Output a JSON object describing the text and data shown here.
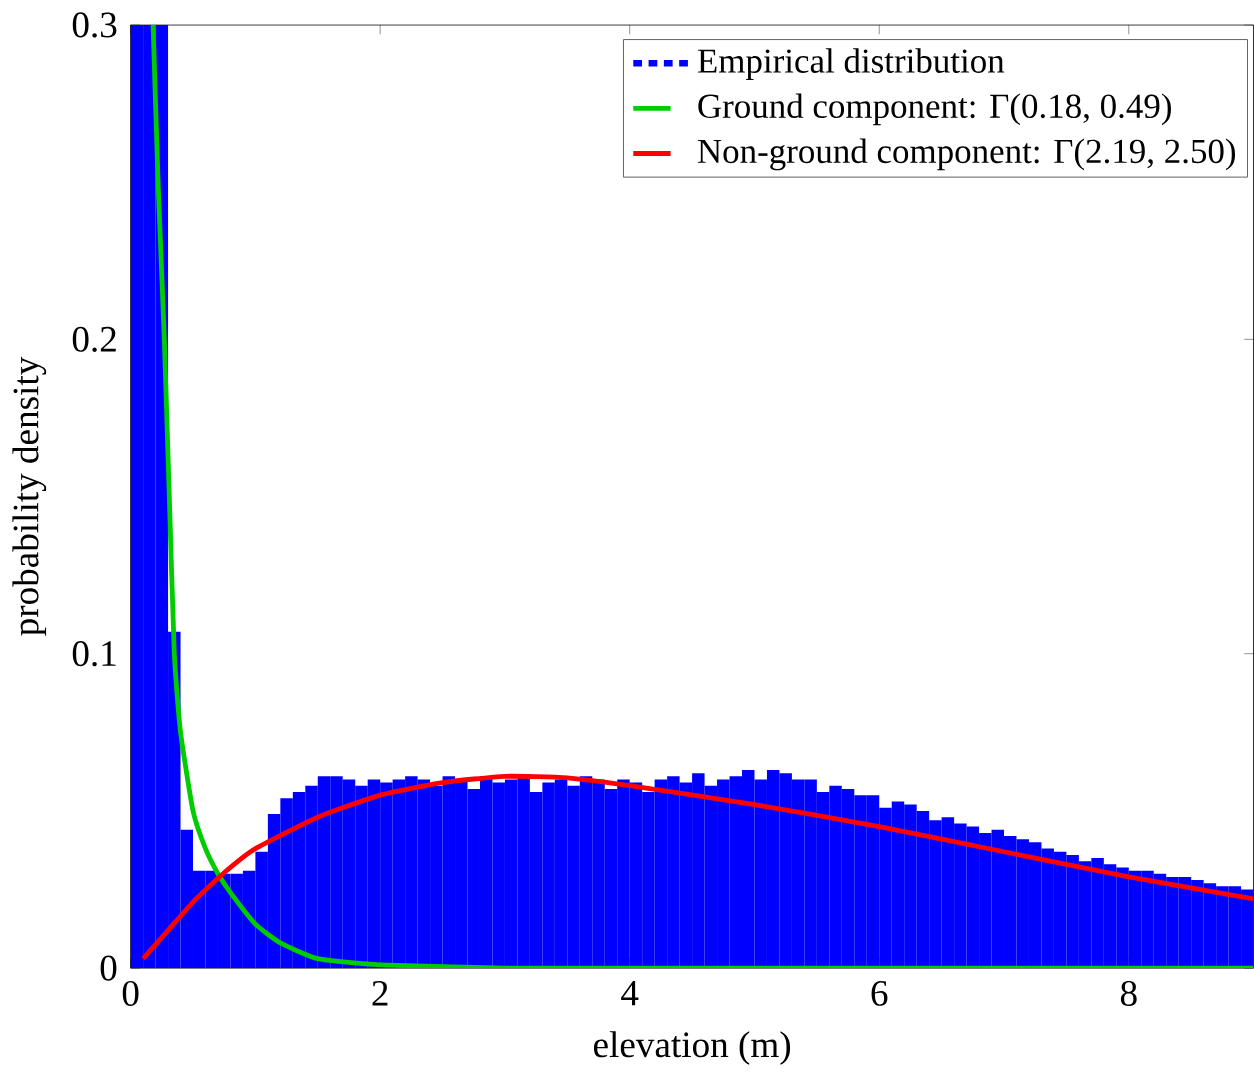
{
  "chart_data": {
    "type": "histogram",
    "xlabel": "elevation (m)",
    "ylabel": "probability density",
    "bins": [
      0,
      0.1,
      0.2,
      0.3,
      0.4,
      0.5,
      0.6,
      0.7,
      0.8,
      0.9,
      1.0,
      1.1,
      1.2,
      1.3,
      1.4,
      1.5,
      1.6,
      1.7,
      1.8,
      1.9,
      2.0,
      2.1,
      2.2,
      2.3,
      2.4,
      2.5,
      2.6,
      2.7,
      2.8,
      2.9,
      3.0,
      3.1,
      3.2,
      3.3,
      3.4,
      3.5,
      3.6,
      3.7,
      3.8,
      3.9,
      4.0,
      4.1,
      4.2,
      4.3,
      4.4,
      4.5,
      4.6,
      4.7,
      4.8,
      4.9,
      5.0,
      5.1,
      5.2,
      5.3,
      5.4,
      5.5,
      5.6,
      5.7,
      5.8,
      5.9,
      6.0,
      6.1,
      6.2,
      6.3,
      6.4,
      6.5,
      6.6,
      6.7,
      6.8,
      6.9,
      7.0,
      7.1,
      7.2,
      7.3,
      7.4,
      7.5,
      7.6,
      7.7,
      7.8,
      7.9,
      8.0,
      8.1,
      8.2,
      8.3,
      8.4,
      8.5,
      8.6,
      8.7,
      8.8,
      8.9,
      9.0
    ],
    "series": [
      {
        "name": "Empirical distribution",
        "color": "#0000ff",
        "values": [
          0.3,
          0.3,
          0.3,
          0.107,
          0.044,
          0.031,
          0.031,
          0.03,
          0.03,
          0.031,
          0.037,
          0.049,
          0.054,
          0.056,
          0.058,
          0.061,
          0.061,
          0.06,
          0.058,
          0.06,
          0.059,
          0.06,
          0.061,
          0.06,
          0.058,
          0.061,
          0.06,
          0.057,
          0.061,
          0.059,
          0.06,
          0.061,
          0.056,
          0.059,
          0.06,
          0.058,
          0.061,
          0.06,
          0.057,
          0.06,
          0.059,
          0.056,
          0.06,
          0.061,
          0.059,
          0.062,
          0.058,
          0.06,
          0.061,
          0.063,
          0.06,
          0.063,
          0.062,
          0.06,
          0.06,
          0.056,
          0.058,
          0.057,
          0.055,
          0.055,
          0.051,
          0.053,
          0.052,
          0.05,
          0.047,
          0.048,
          0.046,
          0.045,
          0.043,
          0.044,
          0.042,
          0.041,
          0.04,
          0.038,
          0.037,
          0.036,
          0.034,
          0.035,
          0.033,
          0.032,
          0.031,
          0.031,
          0.03,
          0.029,
          0.029,
          0.028,
          0.027,
          0.026,
          0.026,
          0.025
        ]
      },
      {
        "name": "Ground component: Γ(0.18, 0.49)",
        "type": "line",
        "color": "#00cc00",
        "x": [
          0.18,
          0.22,
          0.27,
          0.31,
          0.35,
          0.4,
          0.5,
          0.6,
          0.7,
          0.8,
          1.0,
          1.2,
          1.5,
          2,
          3,
          4,
          6,
          9
        ],
        "values": [
          0.3,
          0.25,
          0.2,
          0.15,
          0.1,
          0.075,
          0.05,
          0.038,
          0.03,
          0.024,
          0.014,
          0.008,
          0.003,
          0.001,
          0,
          0,
          0,
          0
        ]
      },
      {
        "name": "Non-ground component: Γ(2.19, 2.50)",
        "type": "line",
        "color": "#ff0000",
        "x": [
          0.1,
          0.3,
          0.5,
          0.74,
          1,
          1.5,
          2,
          2.5,
          3,
          3.5,
          4,
          5,
          6,
          7,
          8,
          9
        ],
        "values": [
          0.003,
          0.012,
          0.021,
          0.03,
          0.038,
          0.048,
          0.055,
          0.059,
          0.061,
          0.0605,
          0.058,
          0.052,
          0.045,
          0.037,
          0.029,
          0.022
        ]
      }
    ],
    "xlim": [
      0,
      9
    ],
    "ylim": [
      0,
      0.3
    ],
    "xticks": [
      0,
      2,
      4,
      6,
      8
    ],
    "yticks": [
      0,
      0.1,
      0.2,
      0.3
    ],
    "legend": "top right"
  }
}
